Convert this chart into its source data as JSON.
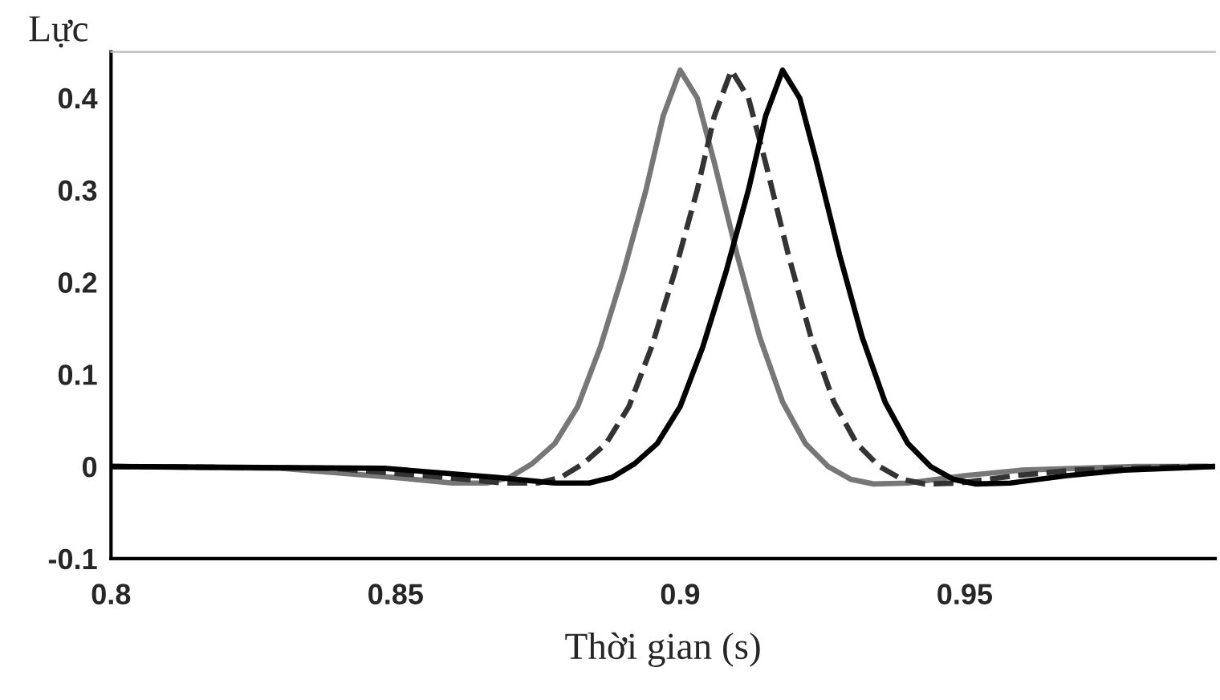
{
  "chart_data": {
    "type": "line",
    "xlabel": "Thời gian (s)",
    "ylabel": "Lực",
    "xlim": [
      0.8,
      0.994
    ],
    "xticks": [
      0.8,
      0.85,
      0.9,
      0.95
    ],
    "ylim": [
      -0.1,
      0.45
    ],
    "yticks": [
      -0.1,
      0,
      0.1,
      0.2,
      0.3,
      0.4
    ],
    "grid": false,
    "legend": false,
    "marker": "none",
    "series": [
      {
        "color": "#777777",
        "line_style": "solid",
        "x": [
          0.8,
          0.83,
          0.85,
          0.86,
          0.866,
          0.87,
          0.874,
          0.878,
          0.882,
          0.886,
          0.89,
          0.894,
          0.897,
          0.9,
          0.903,
          0.906,
          0.91,
          0.914,
          0.918,
          0.922,
          0.926,
          0.93,
          0.934,
          0.94,
          0.95,
          0.96,
          0.98,
          0.994
        ],
        "values": [
          0,
          -0.002,
          -0.012,
          -0.018,
          -0.018,
          -0.012,
          0.003,
          0.025,
          0.065,
          0.13,
          0.21,
          0.3,
          0.38,
          0.43,
          0.4,
          0.33,
          0.23,
          0.14,
          0.07,
          0.025,
          0,
          -0.014,
          -0.019,
          -0.018,
          -0.01,
          -0.004,
          0,
          0
        ]
      },
      {
        "color": "#333333",
        "line_style": "dashed",
        "x": [
          0.8,
          0.839,
          0.859,
          0.869,
          0.875,
          0.879,
          0.883,
          0.887,
          0.891,
          0.895,
          0.899,
          0.903,
          0.906,
          0.909,
          0.912,
          0.915,
          0.919,
          0.923,
          0.927,
          0.931,
          0.935,
          0.939,
          0.943,
          0.949,
          0.959,
          0.969,
          0.989,
          0.994
        ],
        "values": [
          0,
          -0.002,
          -0.012,
          -0.018,
          -0.018,
          -0.012,
          0.003,
          0.025,
          0.065,
          0.13,
          0.21,
          0.3,
          0.38,
          0.43,
          0.4,
          0.33,
          0.23,
          0.14,
          0.07,
          0.025,
          0,
          -0.014,
          -0.019,
          -0.018,
          -0.01,
          -0.004,
          0,
          0
        ]
      },
      {
        "color": "#000000",
        "line_style": "solid",
        "x": [
          0.8,
          0.848,
          0.868,
          0.878,
          0.884,
          0.888,
          0.892,
          0.896,
          0.9,
          0.904,
          0.908,
          0.912,
          0.915,
          0.918,
          0.921,
          0.924,
          0.928,
          0.932,
          0.936,
          0.94,
          0.944,
          0.948,
          0.952,
          0.958,
          0.968,
          0.978,
          0.994
        ],
        "values": [
          0,
          -0.002,
          -0.012,
          -0.018,
          -0.018,
          -0.012,
          0.003,
          0.025,
          0.065,
          0.13,
          0.21,
          0.3,
          0.38,
          0.43,
          0.4,
          0.33,
          0.23,
          0.14,
          0.07,
          0.025,
          0,
          -0.014,
          -0.019,
          -0.018,
          -0.01,
          -0.004,
          0
        ]
      }
    ]
  }
}
